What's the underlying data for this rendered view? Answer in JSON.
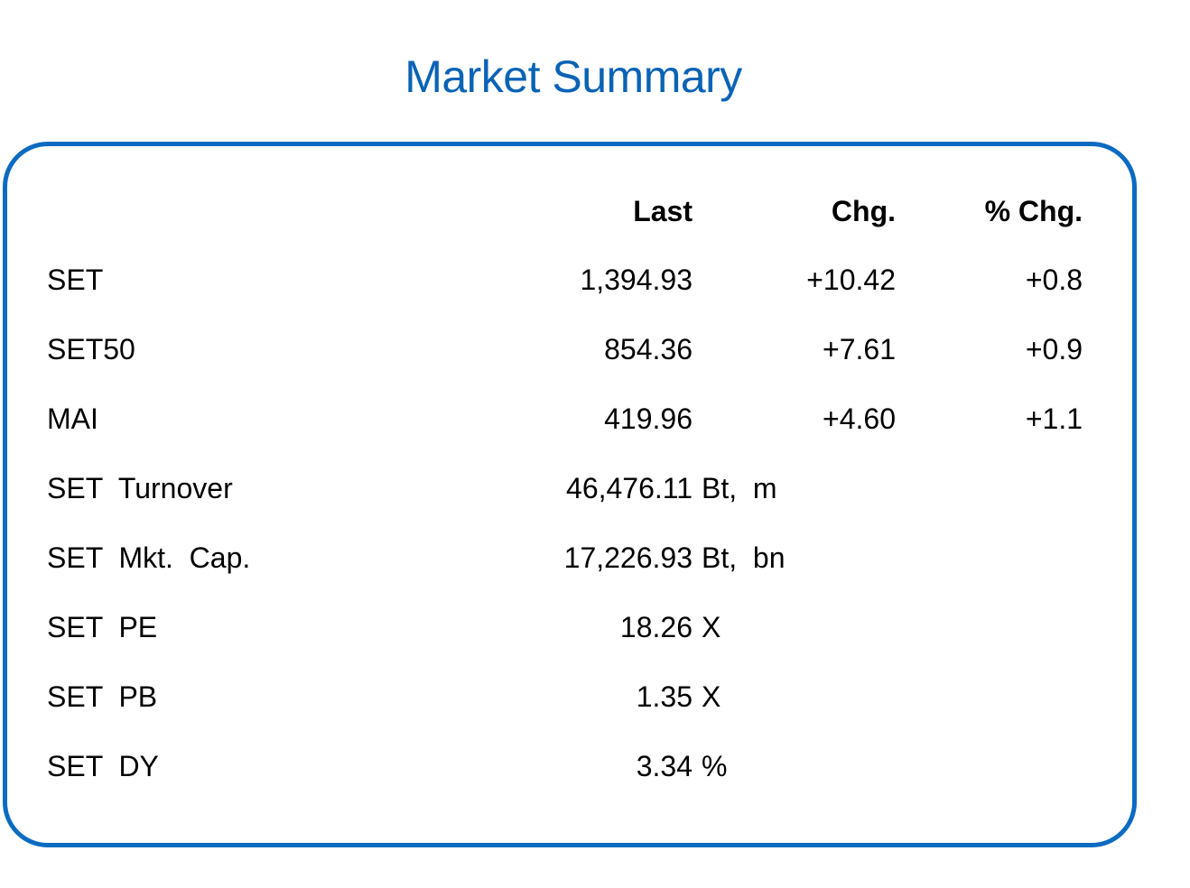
{
  "title": "Market Summary",
  "colors": {
    "title": "#0a63b4",
    "panel_border": "#0a6bc1"
  },
  "headers": {
    "last": "Last",
    "chg": "Chg.",
    "pct_chg": "% Chg."
  },
  "index_rows": [
    {
      "label": "SET",
      "last": "1,394.93",
      "chg": "+10.42",
      "pct_chg": "+0.8"
    },
    {
      "label": "SET50",
      "last": "854.36",
      "chg": "+7.61",
      "pct_chg": "+0.9"
    },
    {
      "label": "MAI",
      "last": "419.96",
      "chg": "+4.60",
      "pct_chg": "+1.1"
    }
  ],
  "stat_rows": [
    {
      "label": "SET  Turnover",
      "value": "46,476.11",
      "unit": "Bt,  m"
    },
    {
      "label": "SET  Mkt.  Cap.",
      "value": "17,226.93",
      "unit": "Bt,  bn"
    },
    {
      "label": "SET  PE",
      "value": "18.26",
      "unit": "X"
    },
    {
      "label": "SET  PB",
      "value": "1.35",
      "unit": "X"
    },
    {
      "label": "SET  DY",
      "value": "3.34",
      "unit": "%"
    }
  ]
}
